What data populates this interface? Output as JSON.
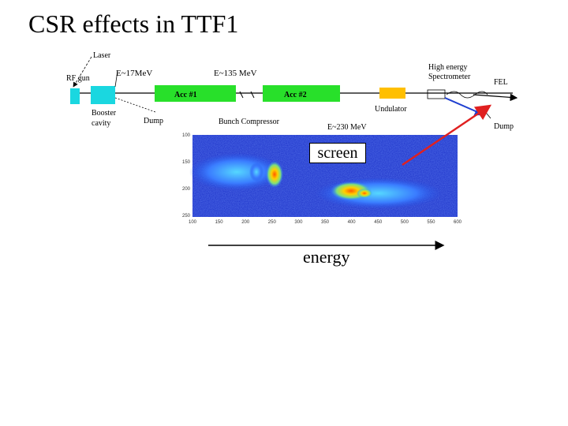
{
  "slide": {
    "title": "CSR effects in TTF1"
  },
  "beamline": {
    "laser": "Laser",
    "rf_gun": "RF gun",
    "energy_1": "E~17MeV",
    "energy_2": "E~135 MeV",
    "acc1": "Acc #1",
    "acc2": "Acc #2",
    "high_energy": "High energy",
    "spectrometer": "Spectrometer",
    "fel": "FEL",
    "booster": "Booster",
    "cavity": "cavity",
    "dump_1": "Dump",
    "bunch_compressor": "Bunch Compressor",
    "undulator": "Undulator",
    "energy_3": "E~230 MeV",
    "dump_2": "Dump"
  },
  "screen_image": {
    "x_ticks": [
      "100",
      "150",
      "200",
      "250",
      "300",
      "350",
      "400",
      "450",
      "500",
      "550",
      "600"
    ],
    "y_ticks": [
      "100",
      "150",
      "200",
      "250"
    ],
    "colors": {
      "background": "#1a2fc8",
      "hot": "#ff6a00",
      "warm": "#f5e400"
    }
  },
  "annotations": {
    "screen": "screen",
    "energy": "energy",
    "arrow_color": "#e02020"
  }
}
